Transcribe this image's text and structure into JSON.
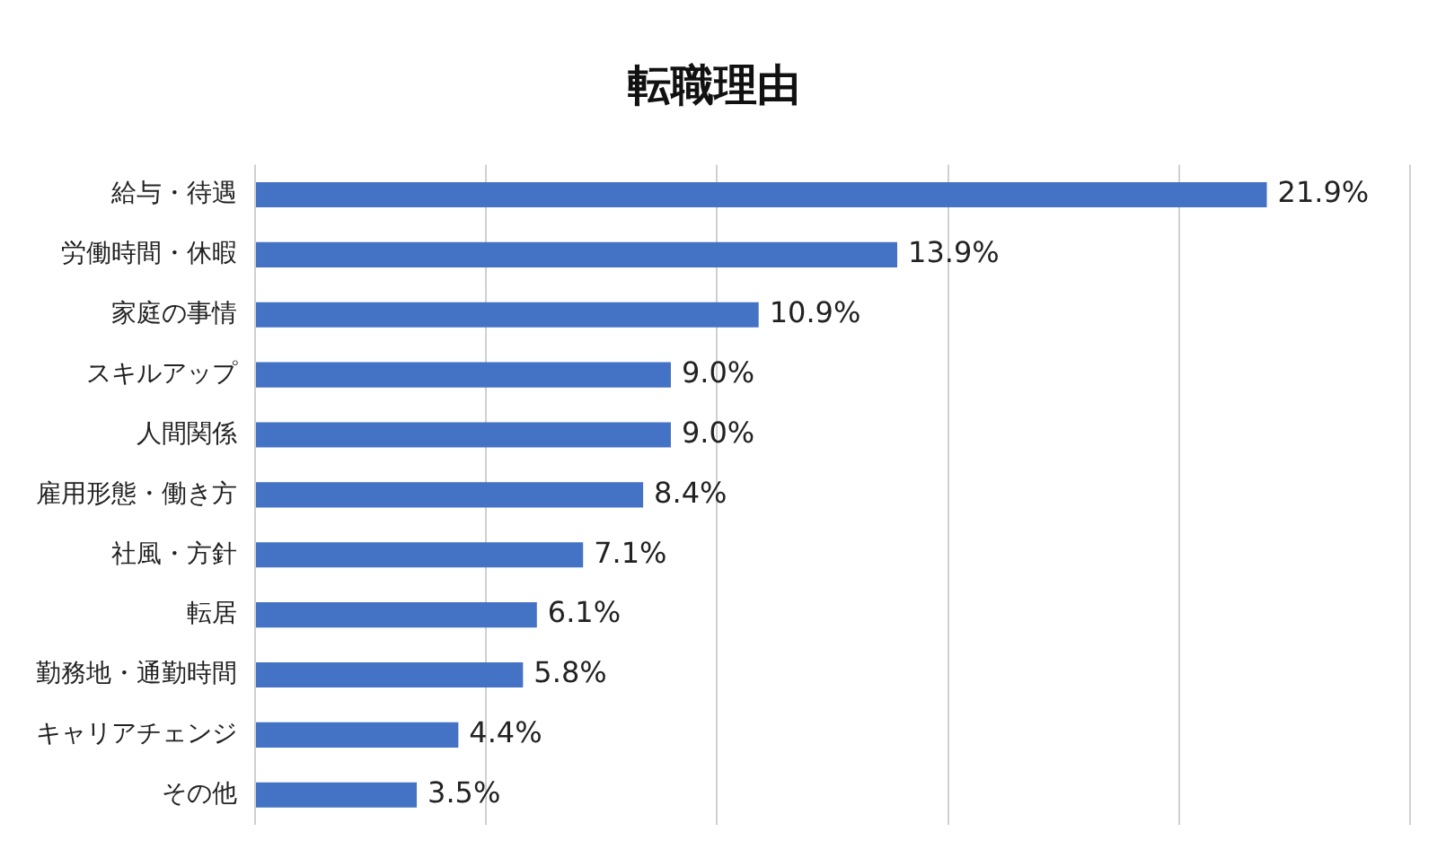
{
  "chart_data": {
    "type": "bar",
    "orientation": "horizontal",
    "title": "転職理由",
    "categories": [
      "給与・待遇",
      "労働時間・休暇",
      "家庭の事情",
      "スキルアップ",
      "人間関係",
      "雇用形態・働き方",
      "社風・方針",
      "転居",
      "勤務地・通勤時間",
      "キャリアチェンジ",
      "その他"
    ],
    "values": [
      21.9,
      13.9,
      10.9,
      9.0,
      9.0,
      8.4,
      7.1,
      6.1,
      5.8,
      4.4,
      3.5
    ],
    "value_labels": [
      "21.9%",
      "13.9%",
      "10.9%",
      "9.0%",
      "9.0%",
      "8.4%",
      "7.1%",
      "6.1%",
      "5.8%",
      "4.4%",
      "3.5%"
    ],
    "color": "#4472c4",
    "xlim": [
      0,
      25
    ],
    "xticks": [
      0,
      5,
      10,
      15,
      20,
      25
    ],
    "grid": "x",
    "tick_labels": "y",
    "legend": false
  }
}
